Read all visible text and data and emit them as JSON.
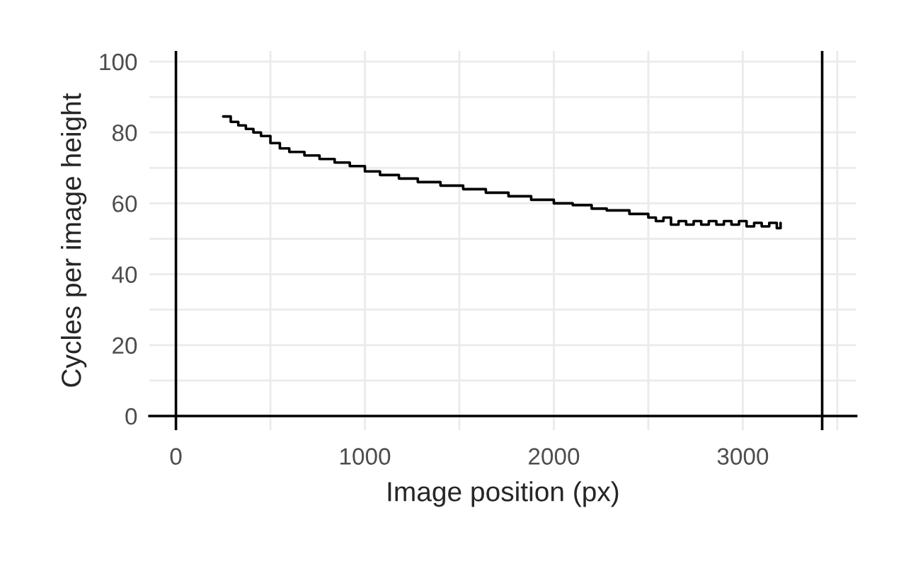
{
  "chart_data": {
    "type": "step",
    "xlabel": "Image position (px)",
    "ylabel": "Cycles per image height",
    "x": [
      250,
      290,
      330,
      370,
      410,
      450,
      500,
      550,
      600,
      680,
      760,
      840,
      920,
      1000,
      1080,
      1180,
      1280,
      1400,
      1520,
      1640,
      1760,
      1880,
      2000,
      2100,
      2200,
      2280,
      2400,
      2500,
      2540,
      2580,
      2620,
      2660,
      2700,
      2740,
      2780,
      2820,
      2860,
      2900,
      2940,
      2980,
      3020,
      3060,
      3100,
      3140,
      3180,
      3200
    ],
    "values": [
      84.5,
      83,
      82,
      81,
      80,
      79,
      77,
      75.5,
      74.5,
      73.5,
      72.5,
      71.5,
      70.5,
      69,
      68,
      67,
      66,
      65,
      64,
      63,
      62,
      61,
      60,
      59.5,
      58.5,
      58,
      57,
      56,
      55,
      56,
      54,
      55,
      54,
      55,
      54,
      55,
      54,
      55,
      54,
      55,
      53.5,
      54.5,
      53.5,
      54.5,
      53,
      54.5
    ],
    "color": "#000000",
    "line_style": "solid",
    "marker": "none",
    "xlim": [
      -140,
      3600
    ],
    "ylim": [
      -4,
      103
    ],
    "xticks": [
      0,
      {
        "value": 500,
        "label": null
      },
      1000,
      {
        "value": 1500,
        "label": null
      },
      2000,
      {
        "value": 2500,
        "label": null
      },
      3000,
      {
        "value": 3500,
        "label": null
      }
    ],
    "yticks": [
      0,
      {
        "value": 10,
        "label": null
      },
      20,
      {
        "value": 30,
        "label": null
      },
      40,
      {
        "value": 50,
        "label": null
      },
      60,
      {
        "value": 70,
        "label": null
      },
      80,
      {
        "value": 90,
        "label": null
      },
      100
    ],
    "ref_lines": [
      {
        "axis": "x",
        "value": 0,
        "color": "#000000"
      },
      {
        "axis": "x",
        "value": 3420,
        "color": "#000000"
      }
    ],
    "grid": true
  }
}
